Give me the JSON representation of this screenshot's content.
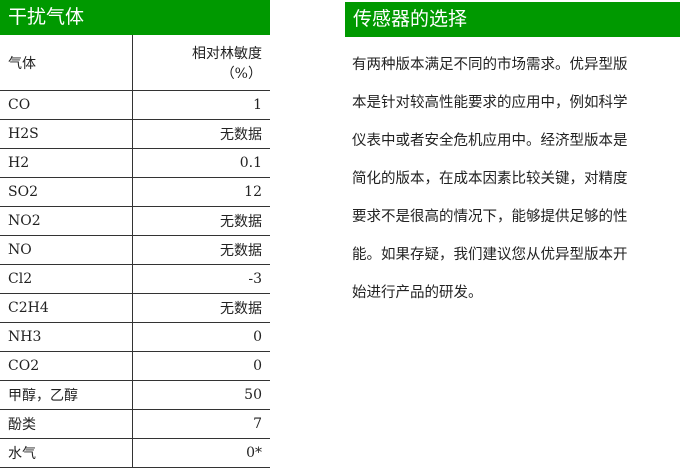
{
  "left": {
    "title": "干扰气体",
    "header": {
      "gas": "气体",
      "sensitivity_line1": "相对林敏度",
      "sensitivity_line2": "（%）"
    },
    "rows": [
      {
        "gas": "CO",
        "value": "1"
      },
      {
        "gas": "H2S",
        "value": "无数据"
      },
      {
        "gas": "H2",
        "value": "0.1"
      },
      {
        "gas": "SO2",
        "value": "12"
      },
      {
        "gas": "NO2",
        "value": "无数据"
      },
      {
        "gas": "NO",
        "value": "无数据"
      },
      {
        "gas": "Cl2",
        "value": "-3"
      },
      {
        "gas": "C2H4",
        "value": "无数据"
      },
      {
        "gas": "NH3",
        "value": "0"
      },
      {
        "gas": "CO2",
        "value": "0"
      },
      {
        "gas": "甲醇，乙醇",
        "value": "50"
      },
      {
        "gas": "酚类",
        "value": "7"
      },
      {
        "gas": "水气",
        "value": "0*"
      }
    ]
  },
  "right": {
    "title": "传感器的选择",
    "lines": [
      "有两种版本满足不同的市场需求。优异型版",
      "本是针对较高性能要求的应用中，例如科学",
      "仪表中或者安全危机应用中。经济型版本是",
      "简化的版本，在成本因素比较关键，对精度",
      "要求不是很高的情况下，能够提供足够的性",
      "能。如果存疑，我们建议您从优异型版本开",
      "始进行产品的研发。"
    ]
  },
  "colors": {
    "header_green": "#009900"
  }
}
